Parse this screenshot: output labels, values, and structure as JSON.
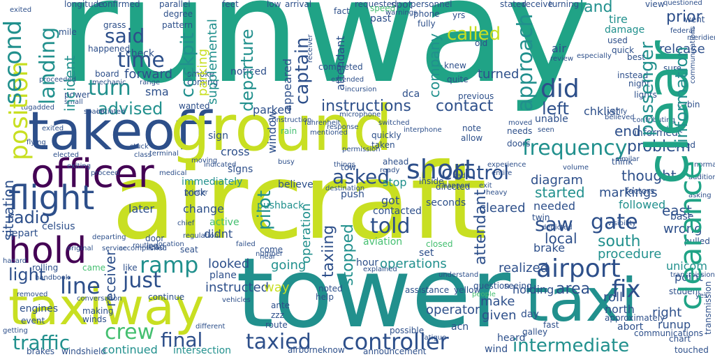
{
  "colors": {
    "background": "#ffffff",
    "teal": "#20a386",
    "navy": "#2d4f8a",
    "purple": "#440154",
    "yellow_green": "#c8df22",
    "mid_teal": "#21908d",
    "blue": "#365c8d",
    "green": "#44bf70"
  },
  "words": {
    "runway": "runway",
    "aircraft": "aircraft",
    "tower": "tower",
    "takeoff": "takeoff",
    "ground": "ground",
    "taxiway": "taxiway",
    "taxi": "taxi",
    "officer": "officer",
    "hold": "hold",
    "flight": "flight",
    "clear": "clear",
    "clearance": "clearance",
    "airport": "airport",
    "controller": "controller",
    "intermediate": "intermediate",
    "traffic": "traffic",
    "taxied": "taxied",
    "short": "short",
    "frequency": "frequency",
    "approach": "approach",
    "position": "position",
    "second": "second",
    "landing": "landing",
    "instructions": "instructions",
    "contact": "contact",
    "said": "said",
    "time": "time",
    "turn": "turn",
    "advised": "advised",
    "did": "did",
    "called": "called",
    "asked": "asked",
    "control": "control",
    "told": "told",
    "ramp": "ramp",
    "crew": "crew",
    "final": "final",
    "line": "line",
    "just": "just",
    "gate": "gate",
    "south": "south",
    "fix": "fix",
    "roll": "roll",
    "area": "area",
    "departure": "departure",
    "captain": "captain",
    "cockpit": "cockpit",
    "pilot": "pilot",
    "attendant": "attendant",
    "light": "light",
    "radio": "radio",
    "situation": "situation",
    "incident": "incident",
    "left": "left",
    "end": "end",
    "land": "land",
    "prior": "prior",
    "passenger": "passenger",
    "information": "information",
    "problem": "problem",
    "thought": "thought",
    "east": "east",
    "wrong": "wrong",
    "operations": "operations",
    "continued": "continued",
    "looked": "looked",
    "instructed": "instructed",
    "cleared": "cleared",
    "saw": "saw",
    "local": "local",
    "procedure": "procedure",
    "north": "north",
    "point": "point",
    "right": "right",
    "runup": "runup",
    "receiver": "receiver",
    "company": "company",
    "stopped": "stopped",
    "operation": "operation",
    "taxiing": "taxiing",
    "parked": "parked",
    "cross": "cross",
    "signs": "signs",
    "diagram": "diagram",
    "started": "started",
    "followed": "followed",
    "markings": "markings",
    "needed": "needed",
    "forward": "forward",
    "parking": "parking",
    "check": "check",
    "sma": "sma",
    "didnt": "didnt",
    "active": "active",
    "change": "change",
    "plane": "plane",
    "pushback": "pushback",
    "contacted": "contacted",
    "aviation": "aviation",
    "going": "going",
    "way": "way",
    "hour": "hour",
    "stop": "stop",
    "immediately": "immediately",
    "later": "later",
    "took": "took",
    "believe": "believe",
    "sign": "sign",
    "got": "got",
    "seconds": "seconds",
    "brake": "brake",
    "holding": "holding",
    "operator": "operator",
    "make": "make",
    "given": "given",
    "release": "release",
    "tire": "tire",
    "damage": "damage",
    "air": "air",
    "completed": "completed",
    "appeared": "appeared",
    "window": "window",
    "supplemental": "supplemental",
    "noticed": "noticed",
    "turned": "turned",
    "chklist": "chklist",
    "unicom": "unicom",
    "informed": "informed",
    "need": "need",
    "base": "base",
    "realized": "realized",
    "celsius": "celsius",
    "depart": "depart",
    "twin": "twin",
    "set": "set",
    "closed": "closed",
    "dca": "dca",
    "acn": "acn",
    "day": "day",
    "heard": "heard",
    "wind": "wind",
    "engines": "engines",
    "note": "note",
    "unable": "unable",
    "fahrenheit": "fahrenheit",
    "mentioned": "mentioned",
    "ahead": "ahead",
    "push": "push",
    "inside": "inside",
    "directed": "directed",
    "abort": "abort",
    "tow": "tow",
    "come": "come",
    "near": "near",
    "low": "low",
    "arrival": "arrival",
    "fact": "fact",
    "requested": "requested",
    "spot": "spot",
    "feet": "feet",
    "personnel": "personnel",
    "phone": "phone",
    "stated": "stated",
    "receive": "receive",
    "turning": "turning",
    "view": "view",
    "questioned": "questioned",
    "longitude": "longitude",
    "confirmed": "confirmed",
    "parallel": "parallel",
    "degree": "degree",
    "mile": "mile",
    "grass": "grass",
    "happened": "happened",
    "visibility": "visibility",
    "communications": "communications",
    "transmission": "transmission",
    "meridiem": "meridiem",
    "federal": "federal",
    "went": "went",
    "quick": "quick",
    "best": "best",
    "sure": "sure",
    "night": "night",
    "lights": "lights",
    "cabin": "cabin",
    "dont": "dont",
    "think": "think",
    "factors": "factors",
    "asking": "asking",
    "pulled": "pulled",
    "ready": "ready",
    "assistance": "assistance",
    "question": "question",
    "seeing": "seeing",
    "approximately": "approximately",
    "student": "student",
    "touched": "touched",
    "chart": "chart",
    "fast": "fast",
    "galley": "galley",
    "fatigue": "fatigue",
    "possible": "possible",
    "airborne": "airborne",
    "know": "know",
    "announcement": "announcement",
    "brakes": "brakes",
    "windshield": "windshield",
    "intersection": "intersection",
    "route": "route",
    "zzz": "zzz",
    "ante": "ante",
    "help": "help",
    "noted": "noted",
    "making": "making",
    "winds": "winds",
    "event": "event",
    "conversation": "conversation",
    "continue": "continue",
    "came": "came",
    "like": "like",
    "rolling": "rolling",
    "departing": "departing",
    "service": "service",
    "original": "original",
    "door": "door",
    "lead": "lead",
    "seat": "seat",
    "failed": "failed",
    "number": "number",
    "hazard": "hazard",
    "removed": "removed",
    "getting": "getting",
    "handbook": "handbook",
    "yellow": "yellow",
    "people": "people",
    "smoke": "smoke",
    "coming": "coming",
    "quite": "quite",
    "knew": "knew",
    "previous": "previous",
    "extended": "extended",
    "incursion": "incursion",
    "past": "past",
    "yrs": "yrs",
    "old": "old",
    "fully": "fully",
    "pattern": "pattern",
    "board": "board",
    "power": "power",
    "space": "space",
    "small": "small",
    "wanted": "wanted",
    "construction": "construction",
    "rain": "rain",
    "quickly": "quickly",
    "taken": "taken",
    "interphone": "interphone",
    "allow": "allow",
    "needs": "needs",
    "doors": "doors",
    "seen": "seen",
    "moved": "moved",
    "verify": "verify",
    "instead": "instead",
    "used": "used",
    "review": "review",
    "especially": "especially",
    "experience": "experience",
    "exit": "exit",
    "volume": "volume",
    "similar": "similar",
    "medical": "medical",
    "moving": "moving",
    "regulation": "regulation",
    "chief": "chief",
    "printer": "printer",
    "indicated": "indicated",
    "busy": "busy",
    "destination": "destination",
    "things": "things",
    "switched": "switched",
    "entire": "entire",
    "bad": "bad",
    "depicted": "depicted",
    "vehicles": "vehicles",
    "response": "response",
    "microphone": "microphone",
    "permission": "permission",
    "tugadded": "tugadded",
    "proceeded": "proceeded",
    "elected": "elected",
    "flying": "flying",
    "routing": "routing",
    "location": "location",
    "class": "class",
    "terminal": "terminal",
    "stuck": "stuck",
    "exiting": "exiting",
    "initiated": "initiated",
    "proceed": "proceed",
    "accomplished": "accomplished",
    "contributing": "contributing",
    "believed": "believed",
    "heavy": "heavy",
    "happen": "happen",
    "mechanic": "mechanic",
    "yes": "yes",
    "range": "range",
    "addition": "addition",
    "different": "different",
    "normal": "normal",
    "exited": "exited",
    "speed": "speed",
    "warnings": "warnings",
    "understand": "understand",
    "explained": "explained"
  }
}
